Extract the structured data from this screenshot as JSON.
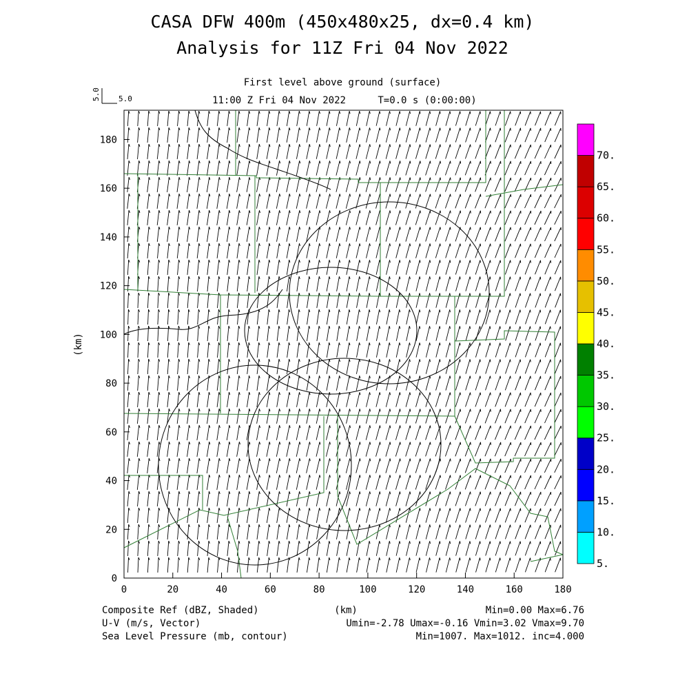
{
  "header": {
    "title": "CASA DFW 400m (450x480x25, dx=0.4 km)",
    "subtitle": "Analysis for 11Z Fri 04 Nov 2022",
    "level": "First level above ground (surface)",
    "time": "11:00 Z Fri 04 Nov 2022",
    "tstamp": "T=0.0 s (0:00:00)"
  },
  "reference_vector": {
    "label_vertical": "5.0",
    "label": "5.0"
  },
  "axes": {
    "xlabel": "(km)",
    "ylabel": "(km)",
    "x_ticks": [
      "0",
      "20",
      "40",
      "60",
      "80",
      "100",
      "120",
      "140",
      "160",
      "180"
    ],
    "y_ticks": [
      "0",
      "20",
      "40",
      "60",
      "80",
      "100",
      "120",
      "140",
      "160",
      "180"
    ],
    "xlim": [
      0,
      180
    ],
    "ylim": [
      0,
      192
    ]
  },
  "colorbar": {
    "levels": [
      "5.",
      "10.",
      "15.",
      "20.",
      "25.",
      "30.",
      "35.",
      "40.",
      "45.",
      "50.",
      "55.",
      "60.",
      "65.",
      "70."
    ],
    "colors": [
      "#00ffff",
      "#00a0ff",
      "#0000ff",
      "#0000c8",
      "#00ff00",
      "#00c800",
      "#008000",
      "#ffff00",
      "#e6c000",
      "#ff8c00",
      "#ff0000",
      "#dc0000",
      "#c00000",
      "#ff00ff"
    ]
  },
  "footer": {
    "line1_left": "Composite Ref (dBZ, Shaded)",
    "line1_mid": "(km)",
    "line1_right": "Min=0.00 Max=6.76",
    "line2_left": "U-V (m/s, Vector)",
    "line2_right": "Umin=-2.78 Umax=-0.16 Vmin=3.02 Vmax=9.70",
    "line3_left": "Sea Level Pressure (mb, contour)",
    "line3_right": "Min=1007. Max=1012. inc=4.000"
  },
  "colors": {
    "county_lines": "#2e7d32",
    "contours": "#000000",
    "vectors": "#000000"
  }
}
